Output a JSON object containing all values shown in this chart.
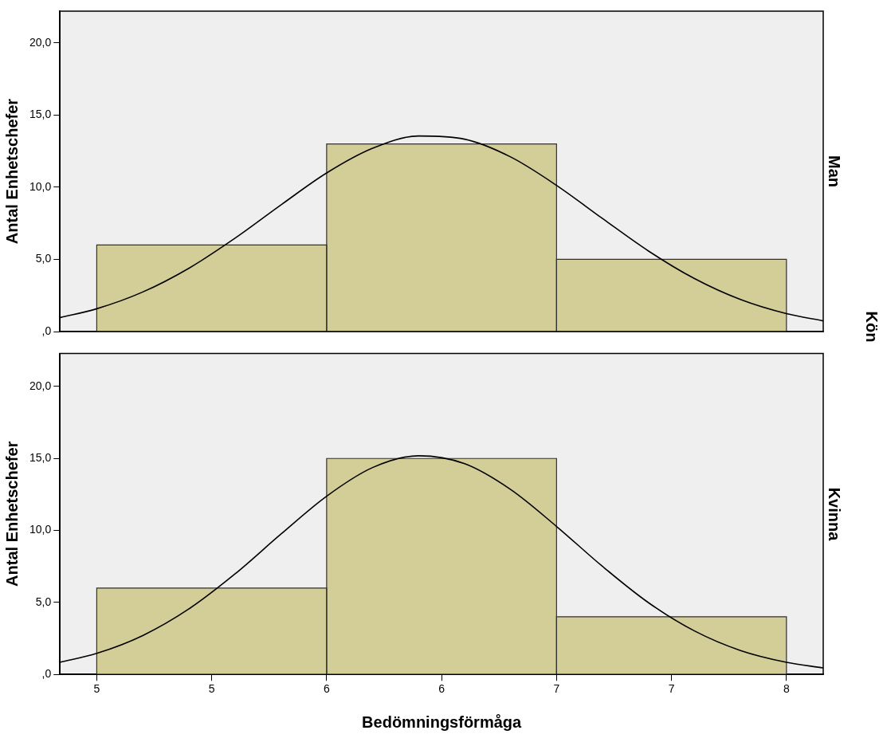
{
  "chart_data": [
    {
      "type": "histogram",
      "title": "Man",
      "ylabel": "Antal Enhetschefer",
      "annotations": [
        "Kön"
      ],
      "bins": [
        5,
        6,
        7,
        8
      ],
      "values": [
        6,
        13,
        5
      ],
      "color": "#d3cd98",
      "series": [
        {
          "type": "line",
          "color": "#000000",
          "x": [
            4.84,
            5.0,
            5.2,
            5.4,
            5.6,
            5.8,
            6.0,
            6.2,
            6.4,
            6.6,
            6.8,
            7.0,
            7.2,
            7.4,
            7.6,
            7.8,
            8.0,
            8.16
          ],
          "values": [
            0.96,
            1.58,
            2.74,
            4.38,
            6.45,
            8.76,
            10.99,
            12.7,
            13.55,
            13.33,
            12.1,
            10.13,
            7.83,
            5.58,
            3.67,
            2.22,
            1.24,
            0.74
          ]
        }
      ],
      "xlim": [
        4.84,
        8.16
      ],
      "ylim": [
        0,
        22.2
      ],
      "yticks": [
        {
          "value": 0,
          "label": ",0"
        },
        {
          "value": 5,
          "label": "5,0"
        },
        {
          "value": 10,
          "label": "10,0"
        },
        {
          "value": 15,
          "label": "15,0"
        },
        {
          "value": 20,
          "label": "20,0"
        }
      ],
      "tick_labels": "y",
      "grid": false,
      "legend": false
    },
    {
      "type": "histogram",
      "title": "Kvinna",
      "xlabel": "Bedömningsförmåga",
      "ylabel": "Antal Enhetschefer",
      "bins": [
        5,
        6,
        7,
        8
      ],
      "values": [
        6,
        15,
        4
      ],
      "color": "#d3cd98",
      "series": [
        {
          "type": "line",
          "color": "#000000",
          "x": [
            4.84,
            5.0,
            5.2,
            5.4,
            5.6,
            5.8,
            6.0,
            6.2,
            6.4,
            6.6,
            6.8,
            7.0,
            7.2,
            7.4,
            7.6,
            7.8,
            8.0,
            8.16
          ],
          "values": [
            0.84,
            1.46,
            2.7,
            4.54,
            6.96,
            9.73,
            12.38,
            14.37,
            15.19,
            14.64,
            12.85,
            10.28,
            7.5,
            4.98,
            3.02,
            1.66,
            0.84,
            0.45
          ]
        }
      ],
      "xlim": [
        4.84,
        8.16
      ],
      "xticks": [
        {
          "value": 5,
          "label": "5"
        },
        {
          "value": 5.5,
          "label": "5"
        },
        {
          "value": 6,
          "label": "6"
        },
        {
          "value": 6.5,
          "label": "6"
        },
        {
          "value": 7,
          "label": "7"
        },
        {
          "value": 7.5,
          "label": "7"
        },
        {
          "value": 8,
          "label": "8"
        }
      ],
      "ylim": [
        0,
        22.3
      ],
      "yticks": [
        {
          "value": 0,
          "label": ",0"
        },
        {
          "value": 5,
          "label": "5,0"
        },
        {
          "value": 10,
          "label": "10,0"
        },
        {
          "value": 15,
          "label": "15,0"
        },
        {
          "value": 20,
          "label": "20,0"
        }
      ],
      "grid": false,
      "legend": false
    }
  ]
}
